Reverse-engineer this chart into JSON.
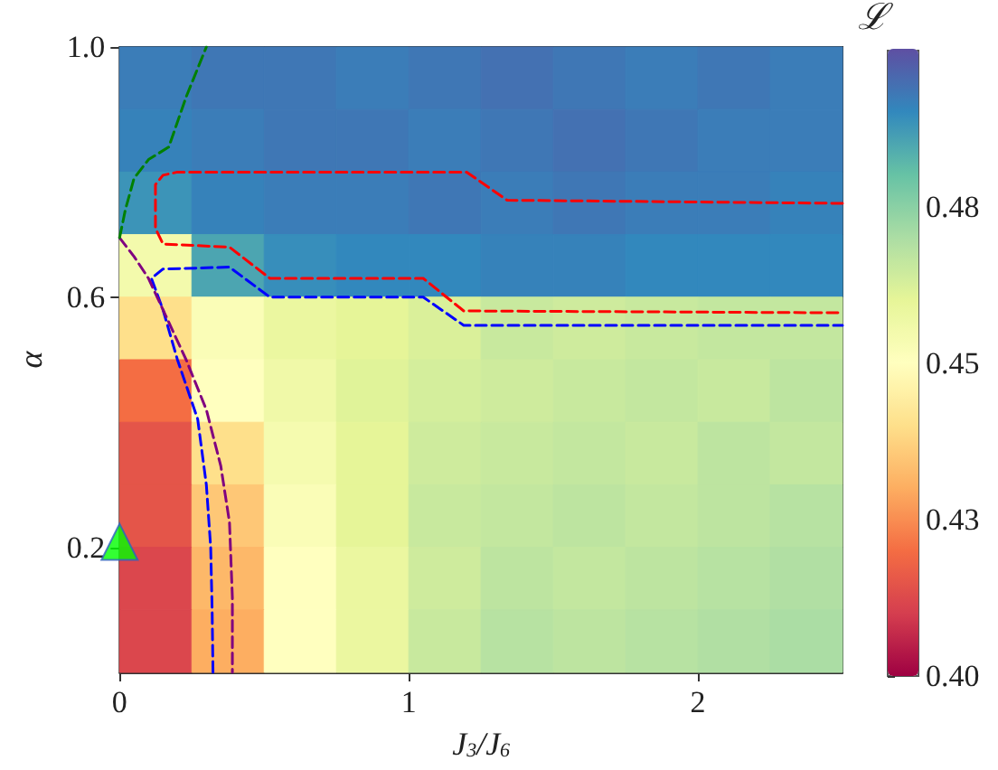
{
  "chart_data": {
    "type": "heatmap",
    "xlabel": "J$_{3}$/J$_{6}$",
    "ylabel": "α",
    "clabel": "ℒ",
    "x": [
      0.125,
      0.375,
      0.625,
      0.875,
      1.125,
      1.375,
      1.625,
      1.875,
      2.125,
      2.375
    ],
    "y": [
      0.95,
      0.85,
      0.75,
      0.65,
      0.55,
      0.45,
      0.35,
      0.25,
      0.15,
      0.05
    ],
    "xlim": [
      0,
      2.5
    ],
    "xticks": [
      0,
      1,
      2
    ],
    "ylim": [
      0,
      1
    ],
    "yticks": [
      0.2,
      0.6,
      {
        "value": 1,
        "label": "1.0"
      }
    ],
    "clim": [
      0.4,
      0.5
    ],
    "cticks": [
      {
        "value": 0.4,
        "label": "0.40"
      },
      {
        "value": 0.425,
        "label": "0.43"
      },
      {
        "value": 0.45,
        "label": "0.45"
      },
      {
        "value": 0.475,
        "label": "0.48"
      }
    ],
    "cells": [
      [
        0.492,
        0.493,
        0.493,
        0.492,
        0.493,
        0.494,
        0.493,
        0.492,
        0.493,
        0.492
      ],
      [
        0.491,
        0.492,
        0.493,
        0.493,
        0.492,
        0.493,
        0.494,
        0.493,
        0.492,
        0.492
      ],
      [
        0.488,
        0.491,
        0.492,
        0.492,
        0.493,
        0.492,
        0.493,
        0.492,
        0.492,
        0.491
      ],
      [
        0.455,
        0.485,
        0.489,
        0.49,
        0.49,
        0.491,
        0.491,
        0.49,
        0.49,
        0.49
      ],
      [
        0.44,
        0.452,
        0.458,
        0.46,
        0.462,
        0.465,
        0.464,
        0.465,
        0.466,
        0.466
      ],
      [
        0.42,
        0.45,
        0.456,
        0.461,
        0.463,
        0.464,
        0.465,
        0.466,
        0.465,
        0.467
      ],
      [
        0.415,
        0.44,
        0.454,
        0.46,
        0.464,
        0.465,
        0.466,
        0.465,
        0.467,
        0.466
      ],
      [
        0.415,
        0.435,
        0.452,
        0.46,
        0.465,
        0.466,
        0.467,
        0.466,
        0.467,
        0.468
      ],
      [
        0.412,
        0.432,
        0.45,
        0.458,
        0.464,
        0.467,
        0.466,
        0.467,
        0.468,
        0.469
      ],
      [
        0.412,
        0.43,
        0.45,
        0.458,
        0.465,
        0.468,
        0.467,
        0.468,
        0.469,
        0.47
      ]
    ],
    "series": [
      {
        "type": "line",
        "color": "#ff0000",
        "line_style": "dashed",
        "x": [
          2.5,
          1.34,
          1.2,
          0.2,
          0.15,
          0.124,
          0.124,
          0.15,
          0.38,
          0.52,
          1.05,
          1.19,
          2.5
        ],
        "values": [
          0.75,
          0.755,
          0.8,
          0.8,
          0.795,
          0.78,
          0.71,
          0.685,
          0.68,
          0.63,
          0.63,
          0.578,
          0.575
        ]
      },
      {
        "type": "line",
        "color": "#0000ff",
        "line_style": "dashed",
        "x": [
          0.323,
          0.32,
          0.315,
          0.3,
          0.27,
          0.2,
          0.15,
          0.11,
          0.15,
          0.38,
          0.52,
          1.05,
          1.19,
          2.5
        ],
        "values": [
          0,
          0.1,
          0.2,
          0.3,
          0.405,
          0.5,
          0.58,
          0.63,
          0.645,
          0.648,
          0.6,
          0.6,
          0.555,
          0.555
        ]
      },
      {
        "type": "line",
        "color": "#800080",
        "line_style": "dashed",
        "x": [
          0,
          0.05,
          0.1,
          0.16,
          0.23,
          0.3,
          0.35,
          0.38,
          0.39,
          0.39
        ],
        "values": [
          0.695,
          0.665,
          0.63,
          0.57,
          0.5,
          0.42,
          0.33,
          0.24,
          0.12,
          0
        ]
      },
      {
        "type": "line",
        "color": "#008000",
        "line_style": "dashed",
        "x": [
          0,
          0.02,
          0.05,
          0.1,
          0.17,
          0.23,
          0.3
        ],
        "values": [
          0.695,
          0.74,
          0.79,
          0.82,
          0.84,
          0.92,
          1.0
        ]
      },
      {
        "type": "scatter",
        "color": "#00ff00",
        "marker": "triangle",
        "x": [
          0
        ],
        "values": [
          0.2
        ]
      }
    ]
  }
}
